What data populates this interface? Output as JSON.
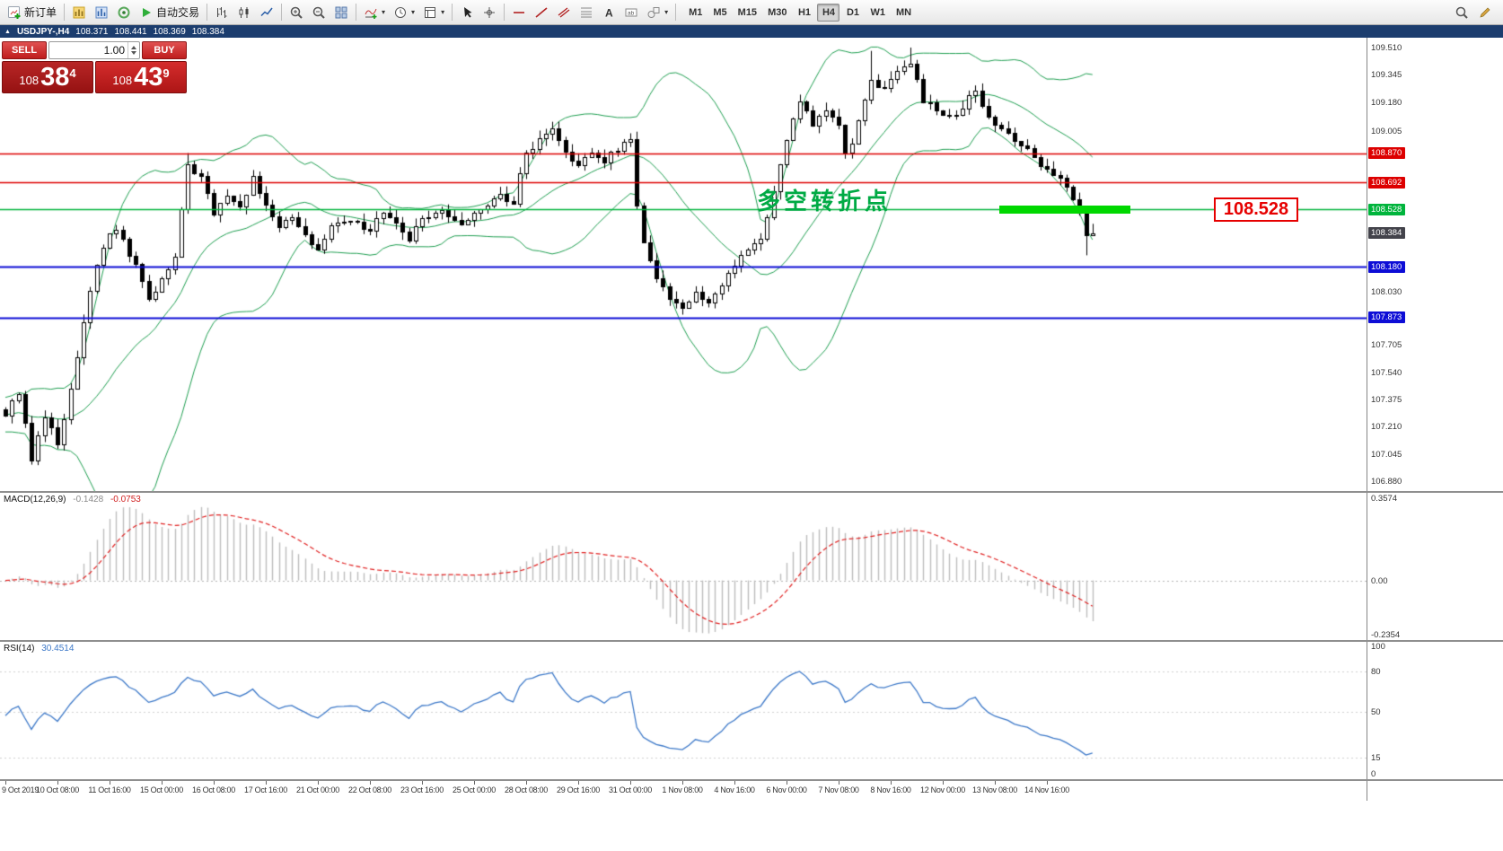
{
  "toolbar": {
    "new_order_label": "新订单",
    "auto_trading_label": "自动交易",
    "timeframes": [
      "M1",
      "M5",
      "M15",
      "M30",
      "H1",
      "H4",
      "D1",
      "W1",
      "MN"
    ],
    "active_timeframe": "H4",
    "icons": [
      "new-order-icon",
      "new-chart-icon",
      "market-watch-icon",
      "navigator-icon",
      "auto-trading-play-icon",
      "bar-chart-icon",
      "candlestick-chart-icon",
      "line-chart-icon",
      "zoom-in-icon",
      "zoom-out-icon",
      "tile-windows-icon",
      "indicators-icon",
      "periods-icon",
      "templates-icon",
      "cursor-icon",
      "crosshair-icon",
      "horizontal-line-icon",
      "trendline-icon",
      "channel-icon",
      "fibonacci-icon",
      "text-icon",
      "text-label-icon",
      "shapes-icon",
      "search-icon",
      "pencil-icon"
    ]
  },
  "chart_header": {
    "marker": "▲",
    "symbol": "USDJPY-,H4",
    "open": "108.371",
    "high": "108.441",
    "low": "108.369",
    "close": "108.384"
  },
  "trade_panel": {
    "sell_label": "SELL",
    "buy_label": "BUY",
    "volume": "1.00",
    "price_prefix": "108",
    "sell_big": "38",
    "sell_sup": "4",
    "buy_big": "43",
    "buy_sup": "9"
  },
  "annotation": {
    "text": "多空转折点",
    "color": "#00aa44"
  },
  "callout": {
    "text": "108.528",
    "color": "#e60000"
  },
  "highlight_band": {
    "price": 108.528,
    "x": 1113,
    "width": 146,
    "height": 9,
    "color": "#00d800"
  },
  "price_axis": {
    "plain_labels": [
      "109.510",
      "109.345",
      "109.180",
      "109.005",
      "108.030",
      "107.705",
      "107.540",
      "107.375",
      "107.210",
      "107.045",
      "106.880"
    ],
    "tags": [
      {
        "text": "108.870",
        "bg": "#dd0000"
      },
      {
        "text": "108.692",
        "bg": "#dd0000"
      },
      {
        "text": "108.528",
        "bg": "#00b43c"
      },
      {
        "text": "108.384",
        "bg": "#43434b"
      },
      {
        "text": "108.180",
        "bg": "#0d0dd6"
      },
      {
        "text": "107.873",
        "bg": "#0d0dd6"
      }
    ]
  },
  "macd_panel": {
    "label": "MACD(12,26,9)",
    "value_main": "-0.1428",
    "value_signal": "-0.0753",
    "axis_labels": [
      "0.3574",
      "0.00",
      "-0.2354"
    ]
  },
  "rsi_panel": {
    "label": "RSI(14)",
    "value": "30.4514",
    "axis_labels": [
      "100",
      "80",
      "50",
      "15",
      "0"
    ]
  },
  "time_axis": [
    "9 Oct 2019",
    "10 Oct 08:00",
    "11 Oct 16:00",
    "15 Oct 00:00",
    "16 Oct 08:00",
    "17 Oct 16:00",
    "21 Oct 00:00",
    "22 Oct 08:00",
    "23 Oct 16:00",
    "25 Oct 00:00",
    "28 Oct 08:00",
    "29 Oct 16:00",
    "31 Oct 00:00",
    "1 Nov 08:00",
    "4 Nov 16:00",
    "6 Nov 00:00",
    "7 Nov 08:00",
    "8 Nov 16:00",
    "12 Nov 00:00",
    "13 Nov 08:00",
    "14 Nov 16:00"
  ],
  "chart_data": {
    "type": "candlestick",
    "symbol": "USDJPY",
    "timeframe": "H4",
    "ylim": [
      106.82,
      109.57
    ],
    "candle_count": 168,
    "ohlc_last": {
      "open": 108.371,
      "high": 108.441,
      "low": 108.369,
      "close": 108.384
    },
    "close_anchors": [
      [
        0,
        107.3
      ],
      [
        2,
        107.42
      ],
      [
        4,
        107.02
      ],
      [
        6,
        107.28
      ],
      [
        8,
        107.1
      ],
      [
        10,
        107.45
      ],
      [
        13,
        108.05
      ],
      [
        15,
        108.3
      ],
      [
        17,
        108.42
      ],
      [
        20,
        108.18
      ],
      [
        22,
        107.98
      ],
      [
        24,
        108.12
      ],
      [
        26,
        108.25
      ],
      [
        28,
        108.8
      ],
      [
        30,
        108.72
      ],
      [
        32,
        108.5
      ],
      [
        34,
        108.62
      ],
      [
        36,
        108.55
      ],
      [
        38,
        108.72
      ],
      [
        40,
        108.55
      ],
      [
        42,
        108.42
      ],
      [
        44,
        108.5
      ],
      [
        46,
        108.38
      ],
      [
        48,
        108.28
      ],
      [
        50,
        108.42
      ],
      [
        53,
        108.48
      ],
      [
        56,
        108.4
      ],
      [
        58,
        108.52
      ],
      [
        60,
        108.45
      ],
      [
        62,
        108.35
      ],
      [
        64,
        108.48
      ],
      [
        67,
        108.52
      ],
      [
        70,
        108.45
      ],
      [
        73,
        108.55
      ],
      [
        76,
        108.62
      ],
      [
        78,
        108.58
      ],
      [
        80,
        108.88
      ],
      [
        82,
        108.95
      ],
      [
        84,
        109.02
      ],
      [
        86,
        108.88
      ],
      [
        88,
        108.78
      ],
      [
        90,
        108.88
      ],
      [
        92,
        108.82
      ],
      [
        94,
        108.9
      ],
      [
        96,
        108.95
      ],
      [
        97,
        108.55
      ],
      [
        98,
        108.35
      ],
      [
        100,
        108.12
      ],
      [
        102,
        107.98
      ],
      [
        104,
        107.95
      ],
      [
        106,
        108.02
      ],
      [
        108,
        107.98
      ],
      [
        110,
        108.08
      ],
      [
        112,
        108.18
      ],
      [
        114,
        108.28
      ],
      [
        116,
        108.35
      ],
      [
        118,
        108.65
      ],
      [
        120,
        108.95
      ],
      [
        122,
        109.18
      ],
      [
        124,
        109.05
      ],
      [
        126,
        109.12
      ],
      [
        128,
        109.06
      ],
      [
        129,
        108.85
      ],
      [
        131,
        109.05
      ],
      [
        133,
        109.3
      ],
      [
        135,
        109.28
      ],
      [
        137,
        109.35
      ],
      [
        139,
        109.42
      ],
      [
        141,
        109.2
      ],
      [
        143,
        109.12
      ],
      [
        145,
        109.08
      ],
      [
        147,
        109.15
      ],
      [
        149,
        109.25
      ],
      [
        151,
        109.1
      ],
      [
        153,
        109.02
      ],
      [
        155,
        108.95
      ],
      [
        157,
        108.88
      ],
      [
        159,
        108.8
      ],
      [
        161,
        108.75
      ],
      [
        163,
        108.68
      ],
      [
        165,
        108.52
      ],
      [
        166,
        108.37
      ],
      [
        167,
        108.384
      ]
    ],
    "wick_overrides": {
      "4": {
        "low": 106.98
      },
      "28": {
        "high": 108.87
      },
      "84": {
        "high": 109.06
      },
      "97": {
        "high": 109.0
      },
      "104": {
        "low": 107.89
      },
      "133": {
        "high": 109.49
      },
      "139": {
        "high": 109.51
      },
      "166": {
        "low": 108.25
      }
    },
    "hlines": [
      {
        "price": 108.87,
        "color": "#dd0000",
        "width": 1.4
      },
      {
        "price": 108.692,
        "color": "#dd0000",
        "width": 1.4
      },
      {
        "price": 108.528,
        "color": "#00b43c",
        "width": 1.4
      },
      {
        "price": 108.18,
        "color": "#0d0dd6",
        "width": 2
      },
      {
        "price": 107.873,
        "color": "#0d0dd6",
        "width": 2
      }
    ],
    "indicators": {
      "bollinger": {
        "period": 20,
        "deviation": 2,
        "color": "#1e9e50"
      },
      "macd": {
        "fast": 12,
        "slow": 26,
        "signal": 9,
        "histogram_color": "#bdbdbd",
        "signal_color": "#e02020",
        "axis_max": 0.3574,
        "axis_min": -0.2354
      },
      "rsi": {
        "period": 14,
        "color": "#3c78c8",
        "levels": [
          80,
          50,
          15
        ]
      }
    }
  }
}
